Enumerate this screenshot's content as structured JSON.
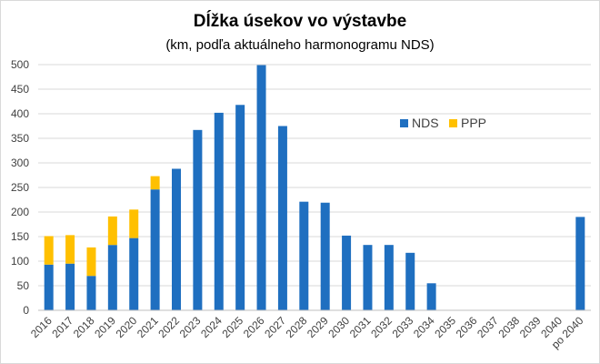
{
  "chart_data": {
    "type": "bar",
    "stacked": true,
    "title": "Dĺžka úsekov vo výstavbe",
    "subtitle": "(km, podľa aktuálneho harmonogramu NDS)",
    "xlabel": "",
    "ylabel": "",
    "ylim": [
      0,
      500
    ],
    "yticks": [
      0,
      50,
      100,
      150,
      200,
      250,
      300,
      350,
      400,
      450,
      500
    ],
    "grid": true,
    "legend_position": "upper-right inside plot",
    "categories": [
      "2016",
      "2017",
      "2018",
      "2019",
      "2020",
      "2021",
      "2022",
      "2023",
      "2024",
      "2025",
      "2026",
      "2027",
      "2028",
      "2029",
      "2030",
      "2031",
      "2032",
      "2033",
      "2034",
      "2035",
      "2036",
      "2037",
      "2038",
      "2039",
      "2040",
      "po 2040"
    ],
    "series": [
      {
        "name": "NDS",
        "color": "#1f6fc0",
        "values": [
          93,
          95,
          70,
          133,
          147,
          246,
          288,
          367,
          402,
          418,
          499,
          375,
          221,
          219,
          152,
          133,
          133,
          117,
          55,
          0,
          0,
          0,
          0,
          0,
          0,
          190
        ]
      },
      {
        "name": "PPP",
        "color": "#ffc000",
        "values": [
          58,
          58,
          58,
          58,
          58,
          27,
          0,
          0,
          0,
          0,
          0,
          0,
          0,
          0,
          0,
          0,
          0,
          0,
          0,
          0,
          0,
          0,
          0,
          0,
          0,
          0
        ]
      }
    ]
  }
}
